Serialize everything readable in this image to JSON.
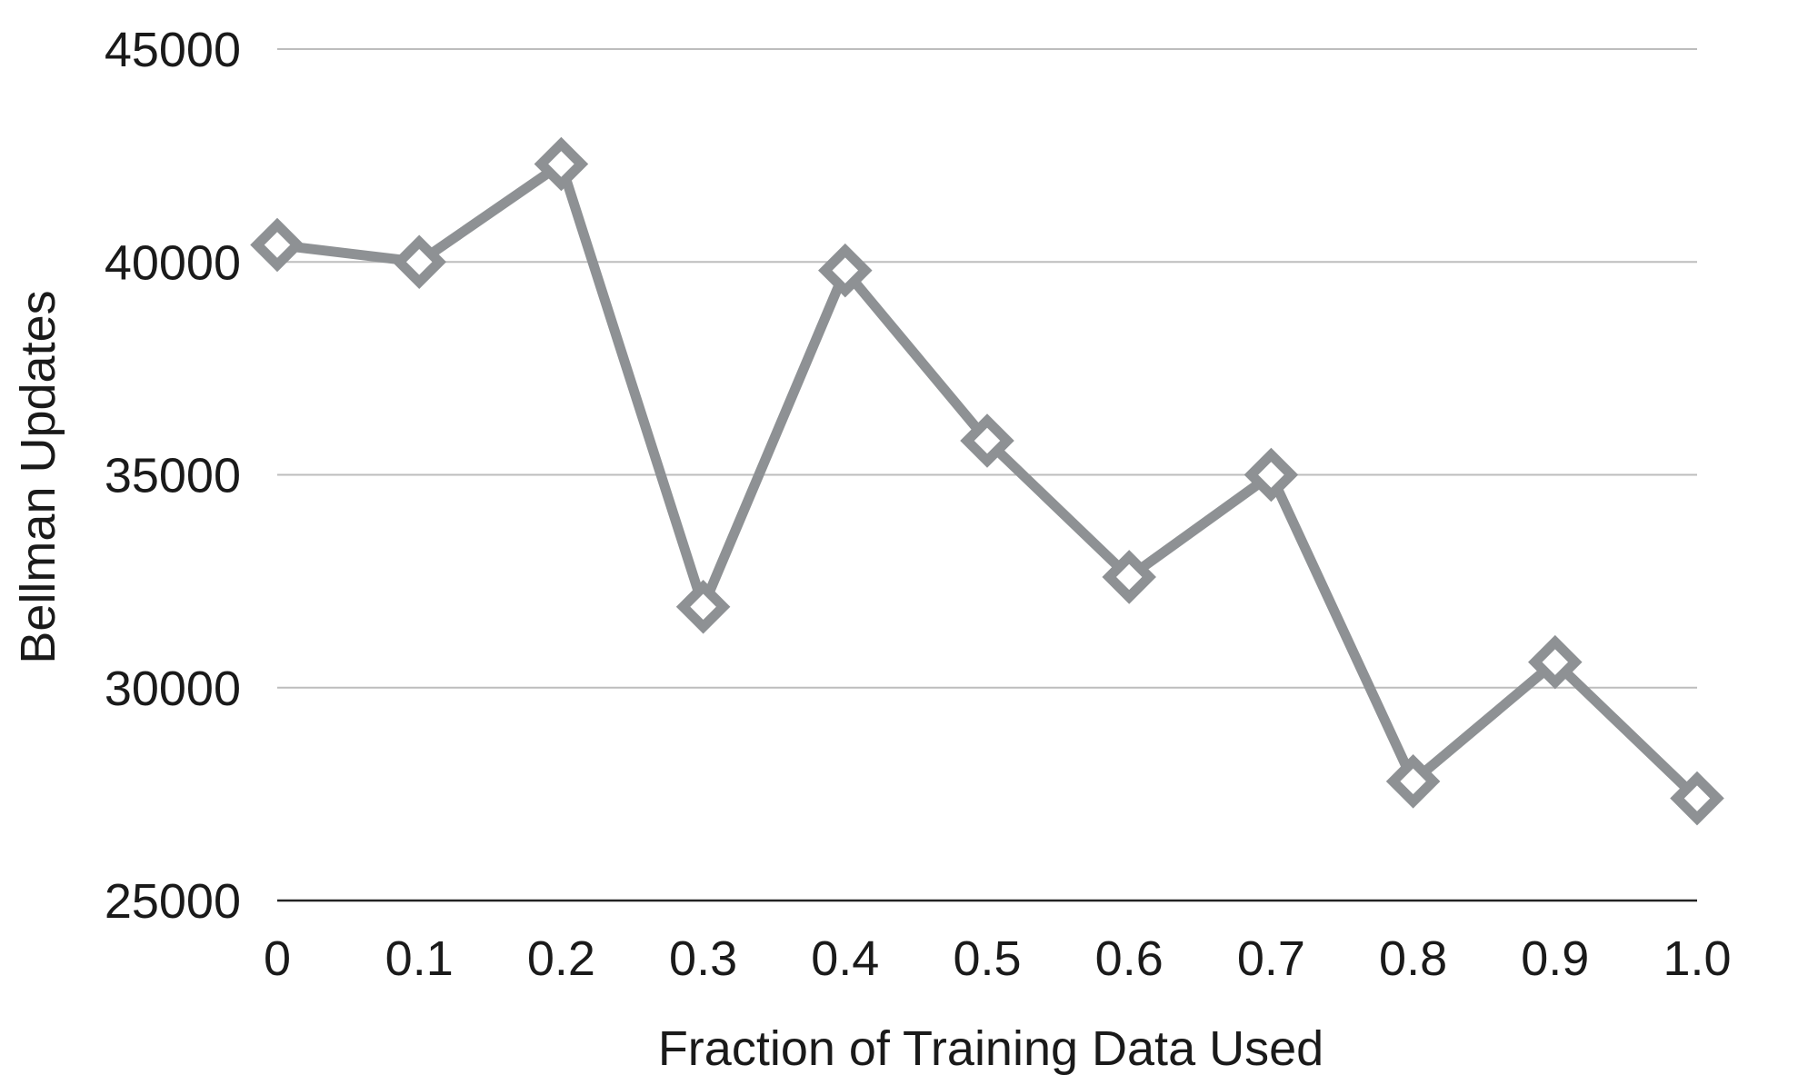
{
  "chart_data": {
    "type": "line",
    "title": "",
    "xlabel": "Fraction of Training Data Used",
    "ylabel": "Bellman Updates",
    "categories": [
      "0",
      "0.1",
      "0.2",
      "0.3",
      "0.4",
      "0.5",
      "0.6",
      "0.7",
      "0.8",
      "0.9",
      "1.0"
    ],
    "series": [
      {
        "values": [
          40400,
          40000,
          42300,
          31900,
          39800,
          35800,
          32600,
          35000,
          27800,
          30600,
          27400
        ]
      }
    ],
    "ylim": [
      25000,
      45000
    ],
    "yticks": [
      "25000",
      "30000",
      "35000",
      "40000",
      "45000"
    ],
    "grid": true,
    "legend": "none",
    "colors": {
      "line": "#8e9194",
      "marker_fill": "#ffffff",
      "grid": "#bdbdbd",
      "axis": "#222222",
      "text": "#1a1a1a"
    }
  }
}
